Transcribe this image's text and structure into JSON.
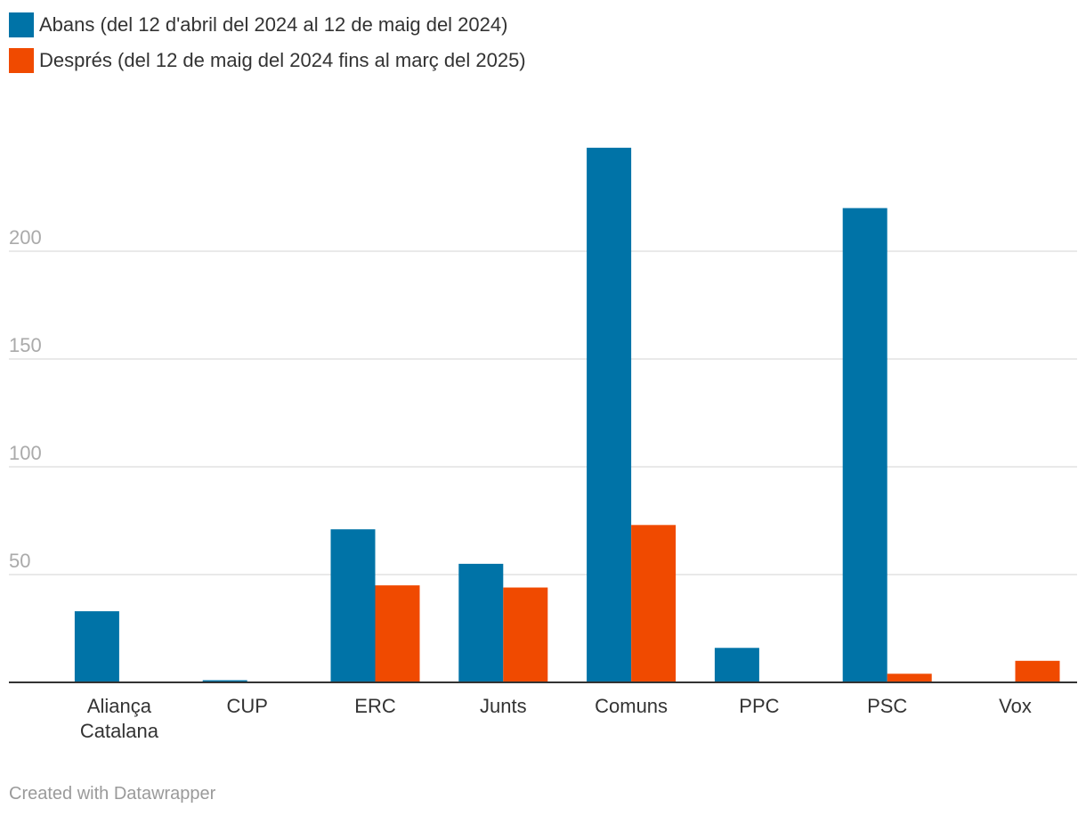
{
  "colors": {
    "abans": "#0073a7",
    "despres": "#f04a00",
    "grid": "#e2e2e2",
    "axis": "#333333",
    "tick_text": "#aaaaaa"
  },
  "legend": {
    "items": [
      {
        "label": "Abans (del 12 d'abril del 2024 al 12 de maig del 2024)",
        "color": "#0073a7"
      },
      {
        "label": "Després (del 12 de maig del 2024 fins al març del 2025)",
        "color": "#f04a00"
      }
    ]
  },
  "footer": {
    "credit": "Created with Datawrapper"
  },
  "chart_data": {
    "type": "bar",
    "categories": [
      [
        "Aliança",
        "Catalana"
      ],
      [
        "CUP"
      ],
      [
        "ERC"
      ],
      [
        "Junts"
      ],
      [
        "Comuns"
      ],
      [
        "PPC"
      ],
      [
        "PSC"
      ],
      [
        "Vox"
      ]
    ],
    "series": [
      {
        "name": "Abans (del 12 d'abril del 2024 al 12 de maig del 2024)",
        "color": "#0073a7",
        "values": [
          33,
          1,
          71,
          55,
          248,
          16,
          220,
          0
        ]
      },
      {
        "name": "Després (del 12 de maig del 2024 fins al març del 2025)",
        "color": "#f04a00",
        "values": [
          0,
          0,
          45,
          44,
          73,
          0,
          4,
          10
        ]
      }
    ],
    "yticks": [
      50,
      100,
      150,
      200
    ],
    "ylim": [
      0,
      260
    ],
    "grid": true,
    "legend_position": "top-left",
    "title": "",
    "xlabel": "",
    "ylabel": ""
  }
}
